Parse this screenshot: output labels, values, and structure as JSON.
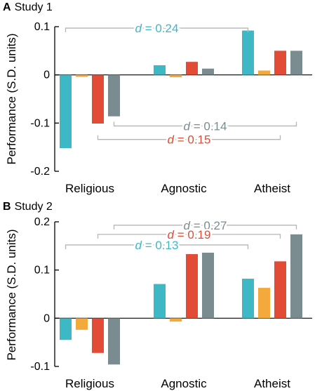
{
  "panels": [
    {
      "letter": "A",
      "name": "Study 1"
    },
    {
      "letter": "B",
      "name": "Study 2"
    }
  ],
  "colors": {
    "teal": "#3fb8c6",
    "orange": "#f3a93c",
    "red": "#e24b35",
    "gray": "#7b8c90",
    "bracket": "#b5b5b5"
  },
  "chart_data": [
    {
      "type": "bar",
      "title": "Study 1",
      "ylabel": "Performance (S.D. units)",
      "xlabel": "",
      "ylim": [
        -0.2,
        0.1
      ],
      "yticks": [
        -0.2,
        -0.1,
        0,
        0.1
      ],
      "ytick_labels": [
        "-0.2",
        "-0.1",
        "0",
        "0.1"
      ],
      "categories": [
        "Religious",
        "Agnostic",
        "Atheist"
      ],
      "series": [
        {
          "color": "teal",
          "values": [
            -0.152,
            0.02,
            0.092
          ]
        },
        {
          "color": "orange",
          "values": [
            -0.004,
            -0.005,
            0.009
          ]
        },
        {
          "color": "red",
          "values": [
            -0.101,
            0.027,
            0.05
          ]
        },
        {
          "color": "gray",
          "values": [
            -0.086,
            0.013,
            0.05
          ]
        }
      ],
      "annotations": [
        {
          "prefix": "d",
          "value": " = 0.24",
          "color": "teal",
          "series": 0,
          "level": 0.097,
          "from": "Religious",
          "to": "Atheist"
        },
        {
          "prefix": "d",
          "value": " = 0.14",
          "color": "gray",
          "series": 3,
          "level": -0.106,
          "from": "Religious",
          "to": "Atheist"
        },
        {
          "prefix": "d",
          "value": " = 0.15",
          "color": "red",
          "series": 2,
          "level": -0.134,
          "from": "Religious",
          "to": "Atheist"
        }
      ]
    },
    {
      "type": "bar",
      "title": "Study 2",
      "ylabel": "Performance (S.D. units)",
      "xlabel": "",
      "ylim": [
        -0.1,
        0.2
      ],
      "yticks": [
        -0.1,
        0,
        0.1,
        0.2
      ],
      "ytick_labels": [
        "-0.1",
        "0",
        "0.1",
        "0.2"
      ],
      "categories": [
        "Religious",
        "Agnostic",
        "Atheist"
      ],
      "series": [
        {
          "color": "teal",
          "values": [
            -0.045,
            0.071,
            0.082
          ]
        },
        {
          "color": "orange",
          "values": [
            -0.024,
            -0.007,
            0.063
          ]
        },
        {
          "color": "red",
          "values": [
            -0.072,
            0.133,
            0.118
          ]
        },
        {
          "color": "gray",
          "values": [
            -0.096,
            0.136,
            0.174
          ]
        }
      ],
      "annotations": [
        {
          "prefix": "d",
          "value": " = 0.27",
          "color": "gray",
          "series": 3,
          "level": 0.193,
          "from": "Religious",
          "to": "Atheist"
        },
        {
          "prefix": "d",
          "value": " = 0.19",
          "color": "red",
          "series": 2,
          "level": 0.174,
          "from": "Religious",
          "to": "Atheist"
        },
        {
          "prefix": "d",
          "value": " = 0.13",
          "color": "teal",
          "series": 0,
          "level": 0.152,
          "from": "Religious",
          "to": "Atheist"
        }
      ]
    }
  ]
}
